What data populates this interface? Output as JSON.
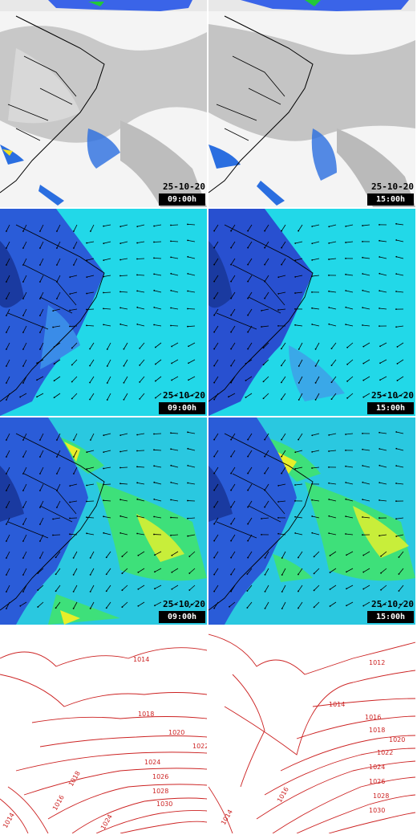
{
  "panels": {
    "satellite_left": {
      "date": "25-10-20",
      "time": "09:00h"
    },
    "satellite_right": {
      "date": "25-10-20",
      "time": "15:00h"
    },
    "wind_a_left": {
      "date": "25-10-20",
      "time": "09:00h"
    },
    "wind_a_right": {
      "date": "25-10-20",
      "time": "15:00h"
    },
    "wind_b_left": {
      "date": "25-10-20",
      "time": "09:00h"
    },
    "wind_b_right": {
      "date": "25-10-20",
      "time": "15:00h"
    }
  },
  "pressure_left": {
    "labels": [
      "1014",
      "1018",
      "1020",
      "1022",
      "1018",
      "1024",
      "1026",
      "1028",
      "1030",
      "1016",
      "1014",
      "1024"
    ]
  },
  "pressure_right": {
    "labels": [
      "1012",
      "1014",
      "1016",
      "1018",
      "1020",
      "1022",
      "1024",
      "1026",
      "1028",
      "1030",
      "1014",
      "1016"
    ]
  },
  "colors": {
    "land_border": "#000000",
    "contour": "#cc2222",
    "ocean_cyan": "#22d8e8",
    "land_blue": "#2a5cd8",
    "green": "#3ee07a",
    "yellow": "#e8ee2a"
  }
}
